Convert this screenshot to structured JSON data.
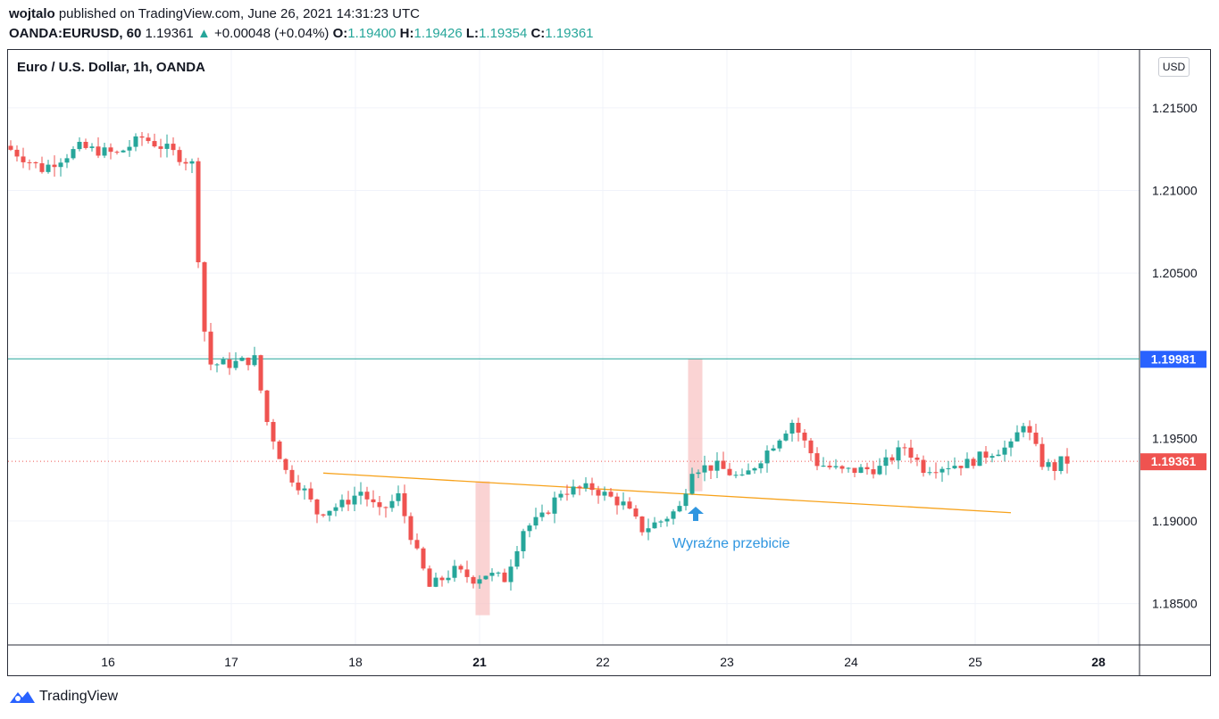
{
  "header": {
    "publisher": "wojtalo",
    "published_text": " published on TradingView.com, June 26, 2021 14:31:23 UTC",
    "symbol": "OANDA:EURUSD, 60",
    "last": "1.19361",
    "change": "+0.00048 (+0.04%)",
    "o_label": "O:",
    "o_val": "1.19400",
    "h_label": "H:",
    "h_val": "1.19426",
    "l_label": "L:",
    "l_val": "1.19354",
    "c_label": "C:",
    "c_val": "1.19361"
  },
  "chart_title": "Euro / U.S. Dollar, 1h, OANDA",
  "currency": "USD",
  "footer_brand": "TradingView",
  "colors": {
    "up": "#26a69a",
    "down": "#ef5350",
    "hline": "#26a69a",
    "trend": "#f7a21b",
    "annot": "#2f96e0",
    "highlight": "#f8c4c4"
  },
  "chart_data": {
    "type": "candlestick",
    "x_ticks": [
      "16",
      "17",
      "18",
      "21",
      "22",
      "23",
      "24",
      "25",
      "28"
    ],
    "y_ticks": [
      "1.21500",
      "1.21000",
      "1.20500",
      "1.20000",
      "1.19500",
      "1.19000",
      "1.18500"
    ],
    "ylim": [
      1.1825,
      1.2185
    ],
    "horizontal_line": {
      "value": 1.19981,
      "label": "1.19981"
    },
    "last_price_line": {
      "value": 1.19361,
      "label": "1.19361"
    },
    "trendline": {
      "from": {
        "bar": 50,
        "price": 1.1929
      },
      "to": {
        "bar": 160,
        "price": 1.1905
      }
    },
    "highlight_bars": [
      {
        "bar": 75.5,
        "low": 1.1843,
        "high": 1.1924
      },
      {
        "bar": 109.5,
        "low": 1.1918,
        "high": 1.1998
      }
    ],
    "annotation": {
      "text": "Wyraźne przebicie",
      "arrow": "up"
    },
    "anchors": [
      [
        0,
        1.2127
      ],
      [
        6,
        1.2113
      ],
      [
        12,
        1.2126
      ],
      [
        18,
        1.2122
      ],
      [
        22,
        1.2132
      ],
      [
        26,
        1.2125
      ],
      [
        30,
        1.2116
      ],
      [
        31,
        1.206
      ],
      [
        32,
        1.2015
      ],
      [
        33,
        1.1995
      ],
      [
        36,
        1.1995
      ],
      [
        40,
        1.1998
      ],
      [
        42,
        1.196
      ],
      [
        45,
        1.193
      ],
      [
        48,
        1.1918
      ],
      [
        50,
        1.1905
      ],
      [
        54,
        1.191
      ],
      [
        57,
        1.1918
      ],
      [
        60,
        1.1905
      ],
      [
        63,
        1.1915
      ],
      [
        66,
        1.188
      ],
      [
        68,
        1.186
      ],
      [
        72,
        1.187
      ],
      [
        75,
        1.1865
      ],
      [
        77,
        1.1868
      ],
      [
        80,
        1.1865
      ],
      [
        83,
        1.1895
      ],
      [
        86,
        1.1902
      ],
      [
        89,
        1.1918
      ],
      [
        94,
        1.192
      ],
      [
        99,
        1.191
      ],
      [
        102,
        1.1895
      ],
      [
        105,
        1.19
      ],
      [
        108,
        1.1908
      ],
      [
        110,
        1.1932
      ],
      [
        114,
        1.1933
      ],
      [
        118,
        1.1925
      ],
      [
        121,
        1.1938
      ],
      [
        126,
        1.196
      ],
      [
        130,
        1.1935
      ],
      [
        134,
        1.193
      ],
      [
        140,
        1.1932
      ],
      [
        144,
        1.1945
      ],
      [
        147,
        1.1932
      ],
      [
        154,
        1.1935
      ],
      [
        158,
        1.1942
      ],
      [
        161,
        1.1945
      ],
      [
        163,
        1.196
      ],
      [
        166,
        1.1935
      ],
      [
        168,
        1.1932
      ],
      [
        169,
        1.1936
      ]
    ],
    "bar_count": 170
  }
}
